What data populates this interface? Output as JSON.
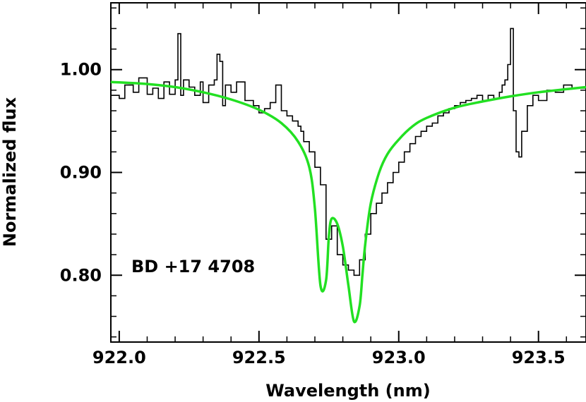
{
  "chart_data": {
    "type": "line",
    "xlabel": "Wavelength (nm)",
    "ylabel": "Normalized flux",
    "xlim": [
      921.97,
      923.67
    ],
    "ylim": [
      0.735,
      1.065
    ],
    "x_ticks": [
      922.0,
      922.5,
      923.0,
      923.5
    ],
    "x_tick_labels": [
      "922.0",
      "922.5",
      "923.0",
      "923.5"
    ],
    "y_ticks": [
      0.8,
      0.9,
      1.0
    ],
    "y_tick_labels": [
      "0.80",
      "0.90",
      "1.00"
    ],
    "annotation": "BD +17 4708",
    "grid": false,
    "series": [
      {
        "color": "#000000",
        "style": "step",
        "x": [
          921.97,
          922.0,
          922.02,
          922.05,
          922.07,
          922.1,
          922.12,
          922.14,
          922.16,
          922.18,
          922.2,
          922.21,
          922.22,
          922.23,
          922.25,
          922.27,
          922.29,
          922.3,
          922.32,
          922.34,
          922.35,
          922.36,
          922.37,
          922.38,
          922.4,
          922.42,
          922.45,
          922.48,
          922.5,
          922.52,
          922.54,
          922.56,
          922.58,
          922.6,
          922.62,
          922.64,
          922.65,
          922.66,
          922.68,
          922.7,
          922.72,
          922.74,
          922.76,
          922.78,
          922.8,
          922.82,
          922.84,
          922.86,
          922.88,
          922.9,
          922.92,
          922.94,
          922.96,
          922.98,
          923.0,
          923.02,
          923.04,
          923.06,
          923.08,
          923.1,
          923.12,
          923.14,
          923.16,
          923.18,
          923.2,
          923.22,
          923.24,
          923.26,
          923.28,
          923.3,
          923.32,
          923.34,
          923.36,
          923.37,
          923.38,
          923.39,
          923.4,
          923.41,
          923.42,
          923.43,
          923.44,
          923.46,
          923.48,
          923.5,
          923.53,
          923.56,
          923.59,
          923.62,
          923.67
        ],
        "y": [
          0.975,
          0.972,
          0.985,
          0.978,
          0.992,
          0.976,
          0.982,
          0.972,
          0.988,
          0.976,
          0.99,
          1.035,
          0.975,
          0.99,
          0.983,
          0.975,
          0.988,
          0.968,
          0.985,
          0.99,
          1.015,
          1.008,
          0.965,
          0.985,
          0.978,
          0.988,
          0.97,
          0.965,
          0.958,
          0.962,
          0.968,
          0.985,
          0.96,
          0.955,
          0.95,
          0.945,
          0.94,
          0.93,
          0.92,
          0.905,
          0.888,
          0.835,
          0.848,
          0.82,
          0.81,
          0.805,
          0.8,
          0.815,
          0.84,
          0.86,
          0.87,
          0.88,
          0.89,
          0.9,
          0.91,
          0.92,
          0.928,
          0.935,
          0.94,
          0.945,
          0.948,
          0.955,
          0.958,
          0.962,
          0.965,
          0.968,
          0.97,
          0.972,
          0.975,
          0.97,
          0.975,
          0.972,
          0.978,
          0.985,
          0.99,
          1.005,
          1.04,
          0.96,
          0.92,
          0.915,
          0.94,
          0.965,
          0.975,
          0.97,
          0.98,
          0.978,
          0.985,
          0.982,
          0.985
        ]
      },
      {
        "color": "#22e022",
        "style": "smooth",
        "x": [
          921.97,
          922.1,
          922.2,
          922.3,
          922.4,
          922.5,
          922.58,
          922.64,
          922.68,
          922.7,
          922.72,
          922.74,
          922.75,
          922.76,
          922.78,
          922.8,
          922.82,
          922.84,
          922.86,
          922.87,
          922.88,
          922.9,
          922.93,
          922.96,
          923.0,
          923.05,
          923.1,
          923.2,
          923.3,
          923.4,
          923.5,
          923.6,
          923.67
        ],
        "y": [
          0.988,
          0.986,
          0.983,
          0.978,
          0.971,
          0.961,
          0.948,
          0.93,
          0.905,
          0.865,
          0.79,
          0.795,
          0.838,
          0.855,
          0.85,
          0.828,
          0.79,
          0.755,
          0.77,
          0.8,
          0.83,
          0.87,
          0.9,
          0.918,
          0.932,
          0.945,
          0.953,
          0.963,
          0.969,
          0.974,
          0.978,
          0.981,
          0.983
        ]
      }
    ]
  }
}
